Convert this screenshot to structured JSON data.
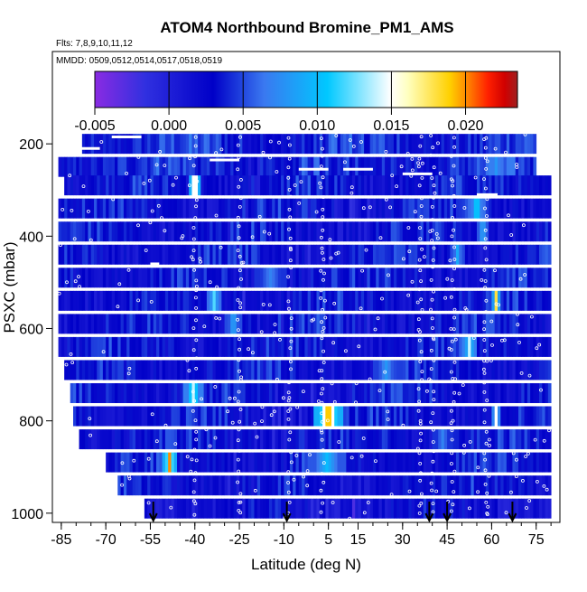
{
  "chart_data": {
    "type": "heatmap",
    "title": "ATOM4 Northbound Bromine_PM1_AMS",
    "subtitle_flights": "Flts: 7,8,9,10,11,12",
    "subtitle_dates": "MMDD: 0509,0512,0514,0517,0518,0519",
    "xlabel": "Latitude (deg N)",
    "ylabel": "PSXC (mbar)",
    "xlim": [
      -88,
      83
    ],
    "ylim": [
      1020,
      0
    ],
    "x_ticks": [
      -85,
      -70,
      -55,
      -40,
      -25,
      -10,
      5,
      15,
      30,
      45,
      60,
      75
    ],
    "y_ticks": [
      200,
      400,
      600,
      800,
      1000
    ],
    "colorbar": {
      "min": -0.005,
      "max": 0.0235,
      "ticks": [
        "-0.005",
        "0.000",
        "0.005",
        "0.010",
        "0.015",
        "0.020"
      ],
      "tick_values": [
        -0.005,
        0.0,
        0.005,
        0.01,
        0.015,
        0.02
      ]
    },
    "profile_markers_lat": [
      -54,
      -9,
      39,
      45,
      67
    ],
    "layers": [
      {
        "p": 200,
        "lat": [
          -78,
          75
        ],
        "base": 0.004,
        "hot": []
      },
      {
        "p": 250,
        "lat": [
          -86,
          75
        ],
        "base": 0.004,
        "hot": [
          [
            58,
            64,
            0.008
          ]
        ]
      },
      {
        "p": 290,
        "lat": [
          -84,
          80
        ],
        "base": 0.003,
        "hot": [
          [
            -42,
            -39,
            0.021
          ]
        ]
      },
      {
        "p": 340,
        "lat": [
          -86,
          80
        ],
        "base": 0.003,
        "hot": [
          [
            52,
            57,
            0.012
          ]
        ]
      },
      {
        "p": 390,
        "lat": [
          -86,
          80
        ],
        "base": 0.003,
        "hot": [
          [
            55,
            58,
            0.01
          ]
        ]
      },
      {
        "p": 440,
        "lat": [
          -86,
          80
        ],
        "base": 0.003,
        "hot": [
          [
            46,
            50,
            0.009
          ]
        ]
      },
      {
        "p": 490,
        "lat": [
          -86,
          80
        ],
        "base": 0.003,
        "hot": [
          [
            -20,
            -10,
            0.007
          ]
        ]
      },
      {
        "p": 540,
        "lat": [
          -86,
          80
        ],
        "base": 0.003,
        "hot": [
          [
            -36,
            -32,
            0.012
          ],
          [
            60,
            62,
            0.018
          ]
        ]
      },
      {
        "p": 590,
        "lat": [
          -86,
          80
        ],
        "base": 0.003,
        "hot": [
          [
            -30,
            -25,
            0.009
          ]
        ]
      },
      {
        "p": 640,
        "lat": [
          -86,
          80
        ],
        "base": 0.003,
        "hot": [
          [
            50,
            54,
            0.014
          ]
        ]
      },
      {
        "p": 690,
        "lat": [
          -84,
          80
        ],
        "base": 0.003,
        "hot": [
          [
            20,
            28,
            0.008
          ]
        ]
      },
      {
        "p": 740,
        "lat": [
          -82,
          80
        ],
        "base": 0.003,
        "hot": [
          [
            -44,
            -38,
            0.014
          ]
        ]
      },
      {
        "p": 790,
        "lat": [
          -81,
          80
        ],
        "base": 0.003,
        "hot": [
          [
            0,
            9,
            0.021
          ],
          [
            60,
            62,
            0.015
          ]
        ]
      },
      {
        "p": 840,
        "lat": [
          -79,
          80
        ],
        "base": 0.003,
        "hot": [
          [
            40,
            46,
            0.007
          ]
        ]
      },
      {
        "p": 890,
        "lat": [
          -70,
          80
        ],
        "base": 0.003,
        "hot": [
          [
            -51,
            -47,
            0.02
          ],
          [
            -2,
            10,
            0.01
          ]
        ]
      },
      {
        "p": 940,
        "lat": [
          -66,
          80
        ],
        "base": 0.003,
        "hot": []
      },
      {
        "p": 990,
        "lat": [
          -57,
          80
        ],
        "base": 0.002,
        "hot": []
      }
    ]
  }
}
